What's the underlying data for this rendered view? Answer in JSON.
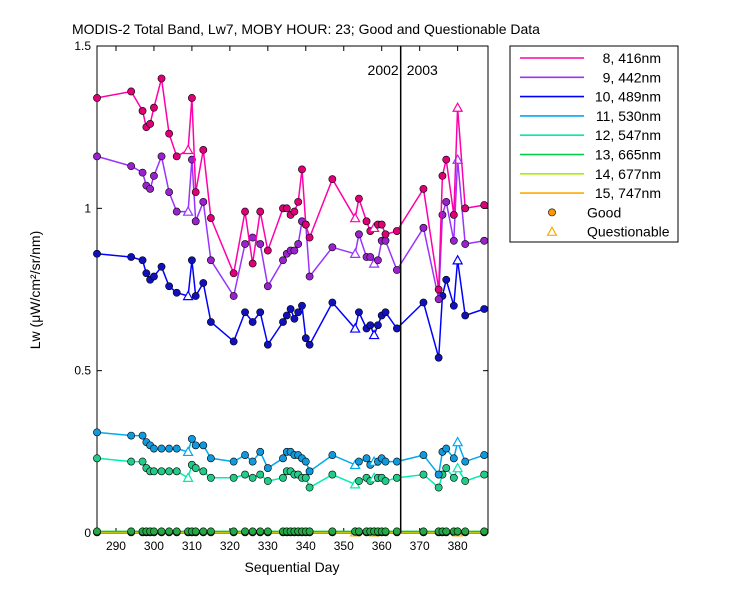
{
  "chart_data": {
    "type": "scatter",
    "title": "MODIS-2 Total Band,  Lw7, MOBY HOUR: 23;  Good and Questionable Data",
    "xlabel": "Sequential Day",
    "ylabel": "Lw (μW/cm²/sr/nm)",
    "xlim": [
      285,
      388
    ],
    "ylim": [
      0,
      1.5
    ],
    "xticks": [
      290,
      300,
      310,
      320,
      330,
      340,
      350,
      360,
      370,
      380
    ],
    "yticks": [
      0,
      0.5,
      1,
      1.5
    ],
    "ytick_labels": [
      "0",
      "0.5",
      "1",
      "1.5"
    ],
    "divider": {
      "x": 365,
      "left_label": "2002",
      "right_label": "2003"
    },
    "legend_position": "outside-right",
    "legend_good": "Good",
    "legend_questionable": "Questionable",
    "good_marker_color": "#ff9900",
    "questionable_marker_color": "#ffaa00",
    "x": [
      285,
      294,
      297,
      298,
      299,
      300,
      302,
      304,
      306,
      309,
      310,
      311,
      313,
      315,
      321,
      324,
      326,
      328,
      330,
      334,
      335,
      336,
      337,
      338,
      339,
      340,
      341,
      347,
      353,
      354,
      356,
      357,
      358,
      359,
      360,
      361,
      364,
      371,
      375,
      376,
      377,
      379,
      380,
      382,
      387
    ],
    "series": [
      {
        "name": "8, 416nm",
        "color": "#ff00aa",
        "marker": "#dd0077",
        "values": [
          1.34,
          1.36,
          1.3,
          1.25,
          1.26,
          1.31,
          1.4,
          1.23,
          1.16,
          1.18,
          1.34,
          1.05,
          1.18,
          0.97,
          0.8,
          0.99,
          0.83,
          0.99,
          0.87,
          1.0,
          1.0,
          0.98,
          0.99,
          1.02,
          1.12,
          0.95,
          0.91,
          1.09,
          0.97,
          1.03,
          0.96,
          0.93,
          0.94,
          0.95,
          0.95,
          0.92,
          0.93,
          1.06,
          0.75,
          1.1,
          1.15,
          0.98,
          1.31,
          1.0,
          1.01
        ],
        "questionable_x": [
          309,
          353,
          358,
          380
        ]
      },
      {
        "name": "9, 442nm",
        "color": "#9933ff",
        "marker": "#9922cc",
        "values": [
          1.16,
          1.13,
          1.11,
          1.07,
          1.06,
          1.1,
          1.16,
          1.05,
          0.99,
          0.99,
          1.15,
          0.96,
          1.02,
          0.84,
          0.73,
          0.89,
          0.91,
          0.89,
          0.76,
          0.84,
          0.86,
          0.87,
          0.87,
          0.89,
          0.96,
          0.95,
          0.79,
          0.88,
          0.86,
          0.92,
          0.85,
          0.85,
          0.83,
          0.84,
          0.9,
          0.9,
          0.81,
          0.94,
          0.72,
          0.98,
          1.02,
          0.9,
          1.15,
          0.89,
          0.9
        ],
        "questionable_x": [
          309,
          353,
          358,
          380
        ]
      },
      {
        "name": "10, 489nm",
        "color": "#0000ff",
        "marker": "#1111bb",
        "values": [
          0.86,
          0.85,
          0.84,
          0.8,
          0.78,
          0.79,
          0.82,
          0.76,
          0.74,
          0.73,
          0.84,
          0.73,
          0.77,
          0.65,
          0.59,
          0.68,
          0.65,
          0.68,
          0.58,
          0.65,
          0.67,
          0.69,
          0.66,
          0.68,
          0.7,
          0.6,
          0.58,
          0.71,
          0.63,
          0.68,
          0.63,
          0.64,
          0.61,
          0.64,
          0.67,
          0.68,
          0.63,
          0.71,
          0.54,
          0.73,
          0.78,
          0.7,
          0.84,
          0.67,
          0.69
        ],
        "questionable_x": [
          309,
          353,
          358,
          380
        ]
      },
      {
        "name": "11, 530nm",
        "color": "#00aaee",
        "marker": "#1199dd",
        "values": [
          0.31,
          0.3,
          0.3,
          0.28,
          0.27,
          0.26,
          0.26,
          0.26,
          0.26,
          0.25,
          0.29,
          0.27,
          0.27,
          0.23,
          0.22,
          0.24,
          0.22,
          0.25,
          0.2,
          0.23,
          0.25,
          0.25,
          0.24,
          0.24,
          0.23,
          0.22,
          0.19,
          0.24,
          0.21,
          0.22,
          0.23,
          0.21,
          0.22,
          0.22,
          0.23,
          0.22,
          0.22,
          0.24,
          0.18,
          0.25,
          0.26,
          0.23,
          0.28,
          0.22,
          0.24
        ],
        "questionable_x": [
          309,
          353,
          358,
          380
        ]
      },
      {
        "name": "12, 547nm",
        "color": "#00eeaa",
        "marker": "#22cc88",
        "values": [
          0.23,
          0.22,
          0.22,
          0.2,
          0.19,
          0.19,
          0.19,
          0.19,
          0.19,
          0.17,
          0.21,
          0.2,
          0.19,
          0.17,
          0.17,
          0.18,
          0.17,
          0.18,
          0.16,
          0.17,
          0.19,
          0.19,
          0.18,
          0.18,
          0.17,
          0.17,
          0.14,
          0.18,
          0.15,
          0.16,
          0.17,
          0.16,
          0.17,
          0.17,
          0.17,
          0.16,
          0.17,
          0.18,
          0.14,
          0.18,
          0.2,
          0.17,
          0.2,
          0.16,
          0.18
        ],
        "questionable_x": [
          309,
          353,
          358,
          380
        ]
      },
      {
        "name": "13, 665nm",
        "color": "#00cc44",
        "marker": "#22aa44",
        "values": [
          0.005,
          0.005,
          0.005,
          0.005,
          0.005,
          0.005,
          0.005,
          0.005,
          0.005,
          0.005,
          0.005,
          0.005,
          0.005,
          0.005,
          0.005,
          0.005,
          0.005,
          0.005,
          0.005,
          0.005,
          0.005,
          0.005,
          0.005,
          0.005,
          0.005,
          0.005,
          0.005,
          0.005,
          0.005,
          0.005,
          0.005,
          0.005,
          0.005,
          0.005,
          0.005,
          0.005,
          0.005,
          0.005,
          0.005,
          0.005,
          0.005,
          0.005,
          0.005,
          0.005,
          0.005
        ],
        "questionable_x": []
      },
      {
        "name": "14, 677nm",
        "color": "#aaee00",
        "marker": "#88bb00",
        "values": [
          0.004,
          0.004,
          0.004,
          0.004,
          0.004,
          0.004,
          0.004,
          0.004,
          0.004,
          0.004,
          0.004,
          0.004,
          0.004,
          0.004,
          0.004,
          0.004,
          0.004,
          0.004,
          0.004,
          0.004,
          0.004,
          0.004,
          0.004,
          0.004,
          0.004,
          0.004,
          0.004,
          0.004,
          0.004,
          0.004,
          0.004,
          0.004,
          0.004,
          0.004,
          0.004,
          0.004,
          0.004,
          0.004,
          0.004,
          0.004,
          0.004,
          0.004,
          0.004,
          0.004,
          0.004
        ],
        "questionable_x": []
      },
      {
        "name": "15, 747nm",
        "color": "#ffaa00",
        "marker": "#ee9900",
        "values": [
          0.002,
          0.002,
          0.002,
          0.002,
          0.002,
          0.002,
          0.002,
          0.002,
          0.002,
          0.002,
          0.002,
          0.002,
          0.002,
          0.002,
          0.002,
          0.002,
          0.002,
          0.002,
          0.002,
          0.002,
          0.002,
          0.002,
          0.002,
          0.002,
          0.002,
          0.002,
          0.002,
          0.002,
          0.002,
          0.002,
          0.002,
          0.002,
          0.002,
          0.002,
          0.002,
          0.002,
          0.002,
          0.002,
          0.002,
          0.002,
          0.002,
          0.002,
          0.002,
          0.002,
          0.002
        ],
        "questionable_x": [
          353,
          358,
          380
        ]
      }
    ]
  }
}
